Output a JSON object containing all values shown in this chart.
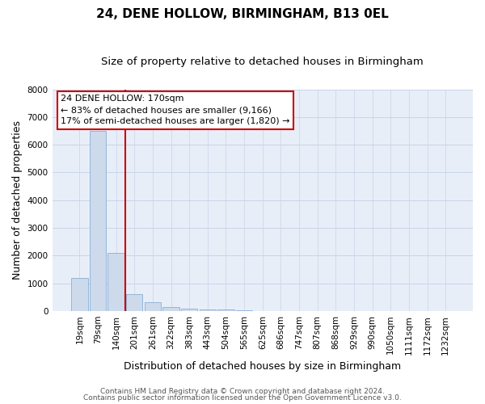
{
  "title": "24, DENE HOLLOW, BIRMINGHAM, B13 0EL",
  "subtitle": "Size of property relative to detached houses in Birmingham",
  "xlabel": "Distribution of detached houses by size in Birmingham",
  "ylabel": "Number of detached properties",
  "bin_labels": [
    "19sqm",
    "79sqm",
    "140sqm",
    "201sqm",
    "261sqm",
    "322sqm",
    "383sqm",
    "443sqm",
    "504sqm",
    "565sqm",
    "625sqm",
    "686sqm",
    "747sqm",
    "807sqm",
    "868sqm",
    "929sqm",
    "990sqm",
    "1050sqm",
    "1111sqm",
    "1172sqm",
    "1232sqm"
  ],
  "bar_values": [
    1200,
    6500,
    2100,
    600,
    310,
    155,
    100,
    65,
    50,
    30,
    10,
    5,
    3,
    2,
    1,
    1,
    1,
    0,
    0,
    0,
    0
  ],
  "bar_color": "#ccdaec",
  "bar_edge_color": "#8aafd4",
  "grid_color": "#c8d4e8",
  "background_color": "#e8eef8",
  "vline_color": "#cc0000",
  "ylim": [
    0,
    8000
  ],
  "yticks": [
    0,
    1000,
    2000,
    3000,
    4000,
    5000,
    6000,
    7000,
    8000
  ],
  "annotation_title": "24 DENE HOLLOW: 170sqm",
  "annotation_line1": "← 83% of detached houses are smaller (9,166)",
  "annotation_line2": "17% of semi-detached houses are larger (1,820) →",
  "annotation_box_color": "#ffffff",
  "annotation_box_edge": "#cc0000",
  "footer_line1": "Contains HM Land Registry data © Crown copyright and database right 2024.",
  "footer_line2": "Contains public sector information licensed under the Open Government Licence v3.0.",
  "title_fontsize": 11,
  "subtitle_fontsize": 9.5,
  "axis_label_fontsize": 9,
  "tick_fontsize": 7.5,
  "annotation_fontsize": 8,
  "footer_fontsize": 6.5
}
